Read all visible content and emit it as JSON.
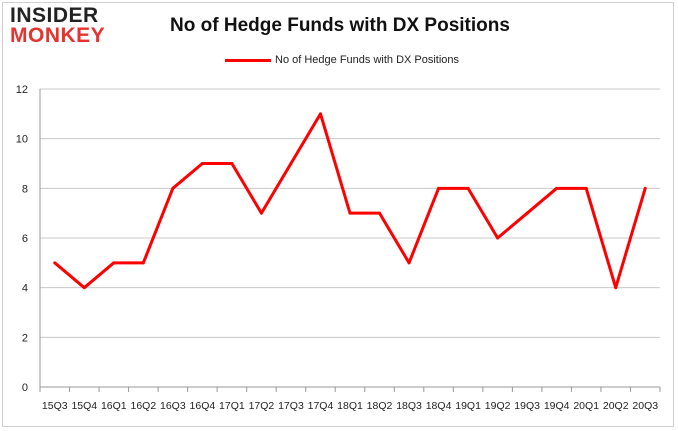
{
  "logo": {
    "line1": "INSIDER",
    "line2": "MONKEY"
  },
  "chart_data": {
    "type": "line",
    "title": "No of Hedge Funds with DX Positions",
    "xlabel": "",
    "ylabel": "",
    "categories": [
      "15Q3",
      "15Q4",
      "16Q1",
      "16Q2",
      "16Q3",
      "16Q4",
      "17Q1",
      "17Q2",
      "17Q3",
      "17Q4",
      "18Q1",
      "18Q2",
      "18Q3",
      "18Q4",
      "19Q1",
      "19Q2",
      "19Q3",
      "19Q4",
      "20Q1",
      "20Q2",
      "20Q3"
    ],
    "series": [
      {
        "name": "No of Hedge Funds with DX Positions",
        "color": "#ff0000",
        "values": [
          5,
          4,
          5,
          5,
          8,
          9,
          9,
          7,
          9,
          11,
          7,
          7,
          5,
          8,
          8,
          6,
          7,
          8,
          8,
          4,
          8
        ]
      }
    ],
    "ylim": [
      0,
      12
    ],
    "yticks": [
      0,
      2,
      4,
      6,
      8,
      10,
      12
    ],
    "grid": true,
    "legend": "top"
  }
}
